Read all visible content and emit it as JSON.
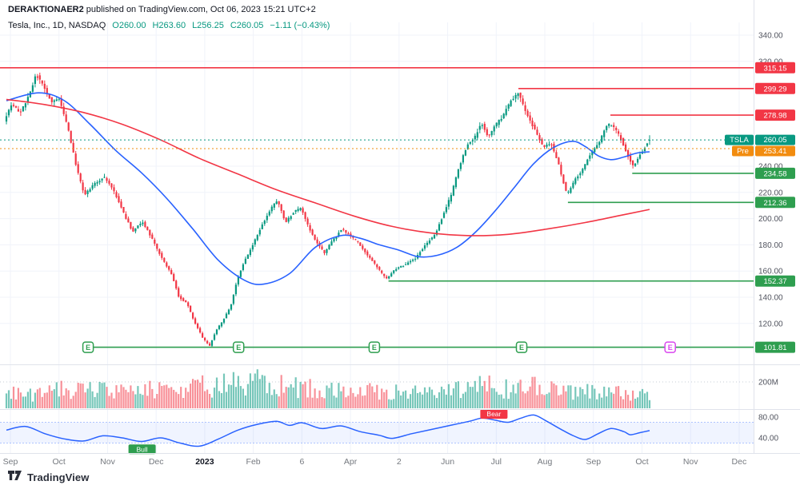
{
  "header": {
    "publisher_name": "DERAKTIONAER2",
    "publish_rest": " published on TradingView.com, Oct 06, 2023 15:21 UTC+2",
    "symbol_line": "Tesla, Inc., 1D, NASDAQ",
    "ohlc": {
      "open": "O260.00",
      "high": "H263.60",
      "low": "L256.25",
      "close": "C260.05",
      "change": "−1.11 (−0.43%)"
    }
  },
  "footer": {
    "brand": "TradingView"
  },
  "colors": {
    "up": "#089981",
    "down": "#f23645",
    "ma_fast": "#2962ff",
    "ma_slow": "#f23645",
    "level_red": "#f23645",
    "level_green": "#2e9e4f",
    "last_teal": "#089981",
    "pre_orange": "#f28c0f",
    "rsi_line": "#2962ff",
    "bull": "#2e9e4f",
    "bear": "#f23645",
    "e_green": "#2e9e4f",
    "e_pink": "#d946ef"
  },
  "chart_data": {
    "type": "candlestick",
    "symbol": "TSLA",
    "name": "Tesla, Inc.",
    "interval": "1D",
    "exchange": "NASDAQ",
    "today": {
      "open": 260.0,
      "high": 263.6,
      "low": 256.25,
      "close": 260.05,
      "change": -1.11,
      "change_pct": -0.43
    },
    "premarket": 253.41,
    "y_axis": {
      "tick_labels": [
        "340.00",
        "320.00",
        "240.00",
        "220.00",
        "200.00",
        "180.00",
        "160.00",
        "140.00",
        "120.00"
      ],
      "tick_values": [
        340,
        320,
        240,
        220,
        200,
        180,
        160,
        140,
        120
      ],
      "range": [
        95,
        350
      ]
    },
    "x_axis": {
      "labels": [
        "Sep",
        "Oct",
        "Nov",
        "Dec",
        "2023",
        "Feb",
        "6",
        "Apr",
        "2",
        "Jun",
        "Jul",
        "Aug",
        "Sep",
        "Oct",
        "Nov",
        "Dec"
      ],
      "bold_index": 4
    },
    "levels": [
      {
        "price": 315.15,
        "label": "315.15",
        "color": "red",
        "from_t": -0.01
      },
      {
        "price": 299.29,
        "label": "299.29",
        "color": "red",
        "from_t": 0.796
      },
      {
        "price": 278.98,
        "label": "278.98",
        "color": "red",
        "from_t": 0.939
      },
      {
        "price": 234.58,
        "label": "234.58",
        "color": "green",
        "from_t": 0.973
      },
      {
        "price": 212.36,
        "label": "212.36",
        "color": "green",
        "from_t": 0.873
      },
      {
        "price": 152.37,
        "label": "152.37",
        "color": "green",
        "from_t": 0.594
      },
      {
        "price": 101.81,
        "label": "101.81",
        "color": "green",
        "from_t": 0.124
      }
    ],
    "last_price_badge": {
      "symbol": "TSLA",
      "value": "260.05"
    },
    "pre_badge": {
      "label": "Pre",
      "value": "253.41"
    },
    "earnings": {
      "letter": "E",
      "on_level": 101.81,
      "t": [
        0.127,
        0.361,
        0.572,
        0.801
      ],
      "future_t": [
        1.032
      ]
    },
    "price_path": [
      [
        0,
        275
      ],
      [
        0.012,
        288
      ],
      [
        0.025,
        280
      ],
      [
        0.04,
        296
      ],
      [
        0.05,
        310
      ],
      [
        0.06,
        302
      ],
      [
        0.075,
        288
      ],
      [
        0.085,
        292
      ],
      [
        0.1,
        268
      ],
      [
        0.112,
        240
      ],
      [
        0.125,
        218
      ],
      [
        0.14,
        226
      ],
      [
        0.155,
        232
      ],
      [
        0.17,
        222
      ],
      [
        0.185,
        205
      ],
      [
        0.2,
        190
      ],
      [
        0.215,
        198
      ],
      [
        0.23,
        185
      ],
      [
        0.245,
        170
      ],
      [
        0.26,
        158
      ],
      [
        0.272,
        140
      ],
      [
        0.285,
        135
      ],
      [
        0.295,
        122
      ],
      [
        0.31,
        108
      ],
      [
        0.32,
        103
      ],
      [
        0.33,
        115
      ],
      [
        0.34,
        122
      ],
      [
        0.352,
        133
      ],
      [
        0.362,
        152
      ],
      [
        0.372,
        166
      ],
      [
        0.385,
        178
      ],
      [
        0.4,
        194
      ],
      [
        0.415,
        208
      ],
      [
        0.425,
        214
      ],
      [
        0.438,
        197
      ],
      [
        0.45,
        205
      ],
      [
        0.462,
        208
      ],
      [
        0.475,
        192
      ],
      [
        0.488,
        180
      ],
      [
        0.498,
        174
      ],
      [
        0.512,
        184
      ],
      [
        0.525,
        192
      ],
      [
        0.54,
        186
      ],
      [
        0.552,
        181
      ],
      [
        0.565,
        172
      ],
      [
        0.58,
        163
      ],
      [
        0.594,
        154
      ],
      [
        0.61,
        162
      ],
      [
        0.625,
        165
      ],
      [
        0.64,
        170
      ],
      [
        0.655,
        180
      ],
      [
        0.67,
        188
      ],
      [
        0.682,
        202
      ],
      [
        0.695,
        218
      ],
      [
        0.708,
        240
      ],
      [
        0.72,
        256
      ],
      [
        0.732,
        262
      ],
      [
        0.742,
        274
      ],
      [
        0.752,
        262
      ],
      [
        0.762,
        270
      ],
      [
        0.775,
        278
      ],
      [
        0.788,
        290
      ],
      [
        0.8,
        296
      ],
      [
        0.812,
        280
      ],
      [
        0.825,
        268
      ],
      [
        0.838,
        255
      ],
      [
        0.85,
        258
      ],
      [
        0.862,
        242
      ],
      [
        0.875,
        218
      ],
      [
        0.888,
        230
      ],
      [
        0.9,
        238
      ],
      [
        0.912,
        250
      ],
      [
        0.925,
        258
      ],
      [
        0.938,
        272
      ],
      [
        0.948,
        270
      ],
      [
        0.958,
        262
      ],
      [
        0.968,
        250
      ],
      [
        0.978,
        240
      ],
      [
        0.988,
        248
      ],
      [
        1,
        258
      ]
    ],
    "ma_fast": [
      [
        0,
        290
      ],
      [
        0.05,
        296
      ],
      [
        0.09,
        290
      ],
      [
        0.13,
        272
      ],
      [
        0.17,
        252
      ],
      [
        0.21,
        235
      ],
      [
        0.25,
        215
      ],
      [
        0.29,
        192
      ],
      [
        0.33,
        168
      ],
      [
        0.37,
        153
      ],
      [
        0.4,
        150
      ],
      [
        0.44,
        158
      ],
      [
        0.48,
        178
      ],
      [
        0.52,
        187
      ],
      [
        0.55,
        185
      ],
      [
        0.58,
        180
      ],
      [
        0.61,
        176
      ],
      [
        0.64,
        171
      ],
      [
        0.67,
        172
      ],
      [
        0.7,
        178
      ],
      [
        0.73,
        190
      ],
      [
        0.76,
        206
      ],
      [
        0.79,
        224
      ],
      [
        0.82,
        242
      ],
      [
        0.85,
        254
      ],
      [
        0.88,
        259
      ],
      [
        0.9,
        255
      ],
      [
        0.92,
        248
      ],
      [
        0.94,
        245
      ],
      [
        0.96,
        247
      ],
      [
        0.98,
        250
      ],
      [
        1,
        251
      ]
    ],
    "ma_slow": [
      [
        0,
        291
      ],
      [
        0.06,
        287
      ],
      [
        0.12,
        281
      ],
      [
        0.18,
        272
      ],
      [
        0.24,
        260
      ],
      [
        0.3,
        246
      ],
      [
        0.36,
        234
      ],
      [
        0.42,
        222
      ],
      [
        0.48,
        212
      ],
      [
        0.54,
        202
      ],
      [
        0.6,
        194
      ],
      [
        0.66,
        189
      ],
      [
        0.72,
        187
      ],
      [
        0.78,
        188
      ],
      [
        0.84,
        192
      ],
      [
        0.9,
        197
      ],
      [
        0.95,
        202
      ],
      [
        1,
        207
      ]
    ],
    "volume": {
      "axis_label": "200M",
      "gridline_millions": 200,
      "profile": [
        [
          0,
          110
        ],
        [
          0.05,
          100
        ],
        [
          0.1,
          150
        ],
        [
          0.13,
          140
        ],
        [
          0.17,
          120
        ],
        [
          0.2,
          135
        ],
        [
          0.25,
          150
        ],
        [
          0.28,
          160
        ],
        [
          0.31,
          175
        ],
        [
          0.34,
          185
        ],
        [
          0.37,
          210
        ],
        [
          0.4,
          190
        ],
        [
          0.43,
          170
        ],
        [
          0.46,
          150
        ],
        [
          0.5,
          140
        ],
        [
          0.54,
          130
        ],
        [
          0.58,
          120
        ],
        [
          0.62,
          115
        ],
        [
          0.66,
          125
        ],
        [
          0.7,
          150
        ],
        [
          0.74,
          165
        ],
        [
          0.78,
          155
        ],
        [
          0.8,
          170
        ],
        [
          0.83,
          150
        ],
        [
          0.86,
          140
        ],
        [
          0.89,
          130
        ],
        [
          0.92,
          115
        ],
        [
          0.95,
          110
        ],
        [
          0.98,
          105
        ],
        [
          1,
          100
        ]
      ]
    },
    "rsi": {
      "axis_labels": [
        "80.00",
        "40.00"
      ],
      "axis_values": [
        80,
        40
      ],
      "upper_band": 70,
      "lower_band": 30,
      "points": [
        [
          0,
          55
        ],
        [
          0.03,
          62
        ],
        [
          0.06,
          48
        ],
        [
          0.09,
          38
        ],
        [
          0.12,
          34
        ],
        [
          0.15,
          44
        ],
        [
          0.18,
          40
        ],
        [
          0.21,
          33
        ],
        [
          0.24,
          40
        ],
        [
          0.27,
          30
        ],
        [
          0.3,
          24
        ],
        [
          0.33,
          38
        ],
        [
          0.36,
          55
        ],
        [
          0.39,
          66
        ],
        [
          0.42,
          72
        ],
        [
          0.44,
          64
        ],
        [
          0.46,
          69
        ],
        [
          0.49,
          58
        ],
        [
          0.52,
          63
        ],
        [
          0.55,
          52
        ],
        [
          0.58,
          45
        ],
        [
          0.6,
          39
        ],
        [
          0.63,
          48
        ],
        [
          0.66,
          56
        ],
        [
          0.69,
          64
        ],
        [
          0.72,
          72
        ],
        [
          0.74,
          78
        ],
        [
          0.76,
          74
        ],
        [
          0.78,
          70
        ],
        [
          0.8,
          78
        ],
        [
          0.82,
          84
        ],
        [
          0.84,
          72
        ],
        [
          0.86,
          58
        ],
        [
          0.88,
          45
        ],
        [
          0.9,
          37
        ],
        [
          0.92,
          48
        ],
        [
          0.94,
          58
        ],
        [
          0.96,
          52
        ],
        [
          0.97,
          46
        ],
        [
          0.985,
          50
        ],
        [
          1,
          54
        ]
      ],
      "annotations": [
        {
          "text": "Bull",
          "color": "bull",
          "t": 0.211,
          "v": 18
        },
        {
          "text": "Bear",
          "color": "bear",
          "t": 0.758,
          "v": 86
        }
      ]
    }
  }
}
